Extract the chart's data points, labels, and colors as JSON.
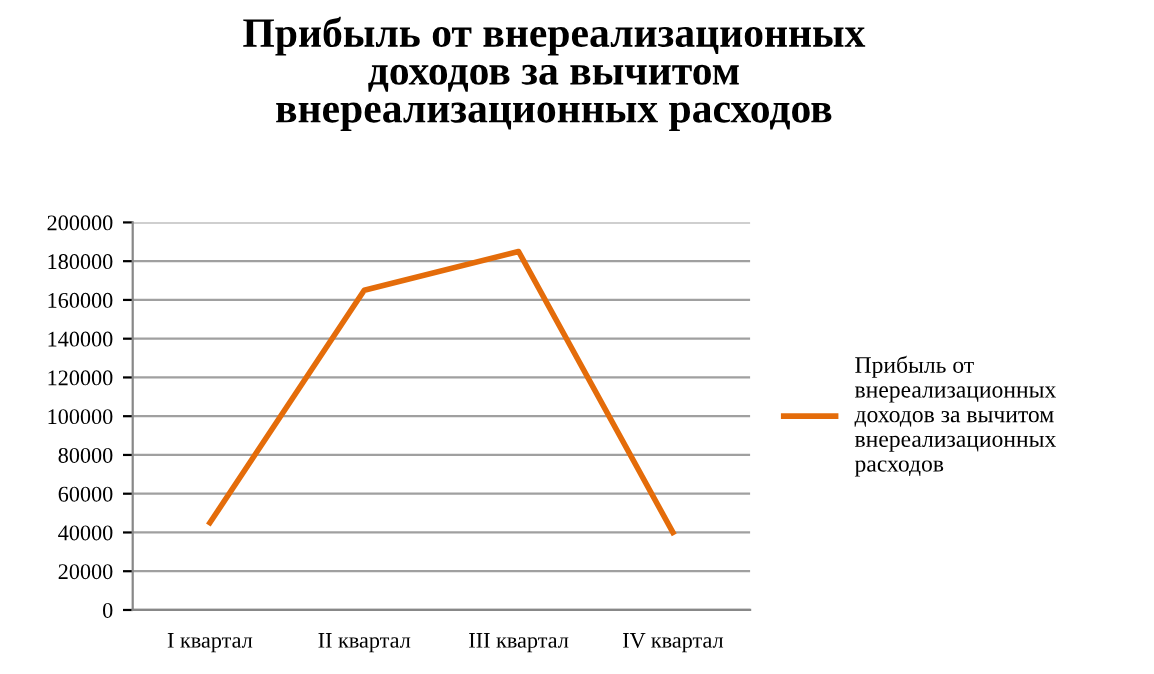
{
  "chart_data": {
    "type": "line",
    "title": "Прибыль от внереализационных\nдоходов за вычитом\nвнереализационных расходов",
    "categories": [
      "I квартал",
      "II квартал",
      "III квартал",
      "IV квартал"
    ],
    "series": [
      {
        "name": "Прибыль от\nвнереализационных\nдоходов за вычитом\nвнереализационных\nрасходов",
        "color": "#e46c0a",
        "values": [
          45000,
          165000,
          185000,
          40000
        ]
      }
    ],
    "ylim": [
      0,
      200000
    ],
    "yticks": [
      0,
      20000,
      40000,
      60000,
      80000,
      100000,
      120000,
      140000,
      160000,
      180000,
      200000
    ],
    "grid": "y",
    "legend": "right",
    "marker": "none"
  }
}
